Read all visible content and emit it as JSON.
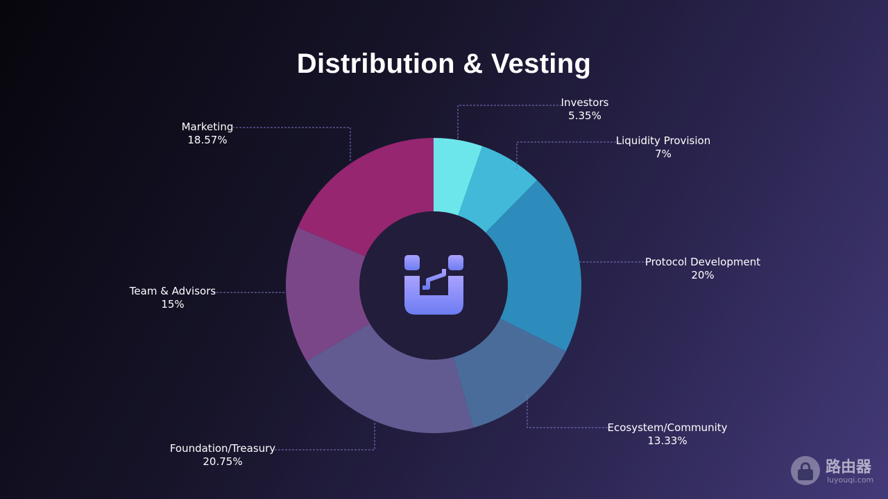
{
  "chart_data": {
    "type": "pie",
    "title": "Distribution & Vesting",
    "categories": [
      "Investors",
      "Liquidity Provision",
      "Protocol Development",
      "Ecosystem/Community",
      "Foundation/Treasury",
      "Team & Advisors",
      "Marketing"
    ],
    "series": [
      {
        "values": [
          5.35,
          7,
          20,
          13.33,
          20.75,
          15,
          18.57
        ],
        "labels": [
          "5.35%",
          "7%",
          "20%",
          "13.33%",
          "20.75%",
          "15%",
          "18.57%"
        ]
      }
    ],
    "colors": [
      "#6ce6ea",
      "#42b9d8",
      "#2d8cbb",
      "#4a6c9b",
      "#625b92",
      "#7b4688",
      "#962670"
    ],
    "donut": true,
    "center_icon": "brand-logo-icon"
  },
  "watermark": {
    "icon": "router-lock-icon",
    "text": "路由器",
    "url": "luyouqi.com"
  }
}
